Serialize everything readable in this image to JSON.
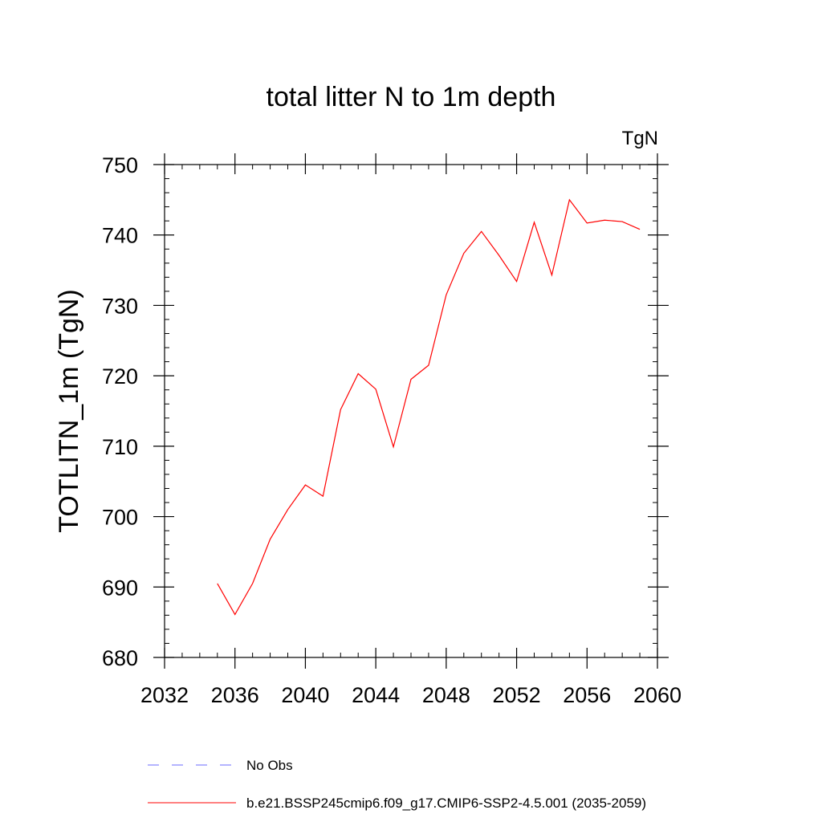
{
  "chart_data": {
    "type": "line",
    "title": "total litter N to 1m depth",
    "units_label": "TgN",
    "ylabel": "TOTLITN_1m  (TgN)",
    "xlabel": "",
    "xlim": [
      2032,
      2060
    ],
    "ylim": [
      680,
      750
    ],
    "x_ticks": [
      2032,
      2036,
      2040,
      2044,
      2048,
      2052,
      2056,
      2060
    ],
    "y_ticks": [
      680,
      690,
      700,
      710,
      720,
      730,
      740,
      750
    ],
    "x_tick_labels": [
      "2032",
      "2036",
      "2040",
      "2044",
      "2048",
      "2052",
      "2056",
      "2060"
    ],
    "y_tick_labels": [
      "680",
      "690",
      "700",
      "710",
      "720",
      "730",
      "740",
      "750"
    ],
    "x_minor_step": 1,
    "y_minor_step": 2,
    "grid": false,
    "legend_position": "bottom",
    "series": [
      {
        "name": "b.e21.BSSP245cmip6.f09_g17.CMIP6-SSP2-4.5.001 (2035-2059)",
        "color": "#ff0000",
        "style": "solid",
        "x": [
          2035,
          2036,
          2037,
          2038,
          2039,
          2040,
          2041,
          2042,
          2043,
          2044,
          2045,
          2046,
          2047,
          2048,
          2049,
          2050,
          2051,
          2052,
          2053,
          2054,
          2055,
          2056,
          2057,
          2058,
          2059
        ],
        "y": [
          690.5,
          686.1,
          690.5,
          696.8,
          701.0,
          704.5,
          702.9,
          715.2,
          720.3,
          718.1,
          709.9,
          719.5,
          721.5,
          731.5,
          737.4,
          740.5,
          737.1,
          733.4,
          741.8,
          734.3,
          745.0,
          741.7,
          742.1,
          741.9,
          740.8
        ]
      }
    ],
    "legend": [
      {
        "label": "No Obs",
        "color": "#6a6aff",
        "style": "dashed"
      },
      {
        "label": "b.e21.BSSP245cmip6.f09_g17.CMIP6-SSP2-4.5.001 (2035-2059)",
        "color": "#ff0000",
        "style": "solid"
      }
    ]
  }
}
